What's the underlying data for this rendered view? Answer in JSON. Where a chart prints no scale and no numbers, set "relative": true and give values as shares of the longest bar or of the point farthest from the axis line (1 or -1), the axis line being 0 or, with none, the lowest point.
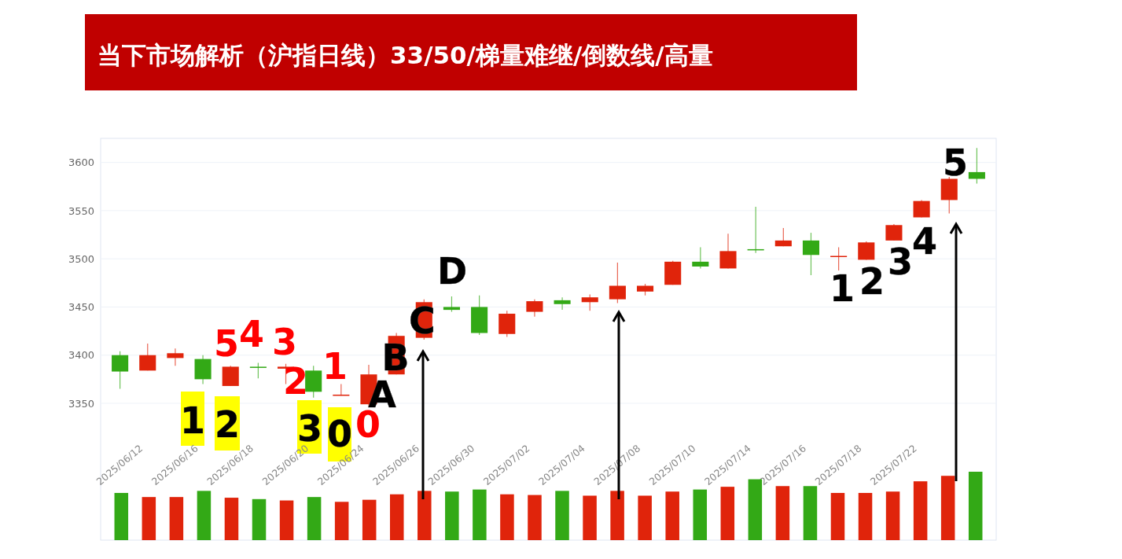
{
  "chart_data": [
    {
      "type": "candlestick",
      "title": "当下市场解析（沪指日线）33/50/梯量难继/倒数线/高量",
      "categories": [
        "2025/06/12",
        null,
        "2025/06/16",
        null,
        "2025/06/18",
        null,
        "2025/06/20",
        null,
        "2025/06/24",
        null,
        "2025/06/26",
        null,
        "2025/06/30",
        null,
        "2025/07/02",
        null,
        "2025/07/04",
        null,
        "2025/07/08",
        null,
        "2025/07/10",
        null,
        "2025/07/14",
        null,
        "2025/07/16",
        null,
        "2025/07/18",
        null,
        "2025/07/22",
        null,
        null,
        null
      ],
      "ohlc": [
        [
          3400,
          3404,
          3365,
          3383
        ],
        [
          3384,
          3412,
          3384,
          3400
        ],
        [
          3397,
          3407,
          3389,
          3402
        ],
        [
          3396,
          3400,
          3370,
          3375
        ],
        [
          3368,
          3389,
          3368,
          3388
        ],
        [
          3388,
          3392,
          3376,
          3387
        ],
        [
          3386,
          3391,
          3370,
          3388
        ],
        [
          3384,
          3389,
          3356,
          3362
        ],
        [
          3358,
          3370,
          3358,
          3359
        ],
        [
          3349,
          3390,
          3347,
          3380
        ],
        [
          3380,
          3423,
          3380,
          3420
        ],
        [
          3418,
          3458,
          3416,
          3455
        ],
        [
          3450,
          3461,
          3445,
          3447
        ],
        [
          3450,
          3462,
          3421,
          3423
        ],
        [
          3422,
          3446,
          3419,
          3443
        ],
        [
          3445,
          3458,
          3440,
          3456
        ],
        [
          3457,
          3460,
          3447,
          3453
        ],
        [
          3455,
          3463,
          3446,
          3460
        ],
        [
          3458,
          3496,
          3454,
          3472
        ],
        [
          3466,
          3474,
          3462,
          3472
        ],
        [
          3473,
          3498,
          3473,
          3497
        ],
        [
          3497,
          3512,
          3490,
          3492
        ],
        [
          3490,
          3526,
          3490,
          3508
        ],
        [
          3510,
          3554,
          3506,
          3509
        ],
        [
          3513,
          3532,
          3513,
          3519
        ],
        [
          3519,
          3527,
          3483,
          3504
        ],
        [
          3502,
          3512,
          3488,
          3503
        ],
        [
          3499,
          3518,
          3499,
          3517
        ],
        [
          3519,
          3536,
          3519,
          3535
        ],
        [
          3543,
          3561,
          3543,
          3560
        ],
        [
          3561,
          3585,
          3547,
          3583
        ],
        [
          3590,
          3615,
          3578,
          3583
        ]
      ],
      "colors": [
        "#33a916",
        "#e0240b",
        "#e0240b",
        "#33a916",
        "#e0240b",
        "#33a916",
        "#e0240b",
        "#33a916",
        "#e0240b",
        "#e0240b",
        "#e0240b",
        "#e0240b",
        "#33a916",
        "#33a916",
        "#e0240b",
        "#e0240b",
        "#33a916",
        "#e0240b",
        "#e0240b",
        "#e0240b",
        "#e0240b",
        "#33a916",
        "#e0240b",
        "#33a916",
        "#e0240b",
        "#33a916",
        "#e0240b",
        "#e0240b",
        "#e0240b",
        "#e0240b",
        "#e0240b",
        "#33a916"
      ],
      "ylim": [
        3208,
        3625
      ],
      "yticks": [
        3350,
        3400,
        3450,
        3500,
        3550,
        3600
      ],
      "grid": "y",
      "annotations": [
        "1",
        "2",
        "3",
        "0",
        "5",
        "4",
        "3",
        "2",
        "1",
        "0",
        "A",
        "B",
        "C",
        "D",
        "1",
        "2",
        "3",
        "4",
        "5"
      ]
    },
    {
      "type": "bar",
      "categories": [
        null,
        null,
        null,
        null,
        null,
        null,
        null,
        null,
        null,
        null,
        null,
        null,
        null,
        null,
        null,
        null,
        null,
        null,
        null,
        null,
        null,
        null,
        null,
        null,
        null,
        null,
        null,
        null,
        null,
        null,
        null,
        null
      ],
      "values": [
        0.69,
        0.63,
        0.63,
        0.72,
        0.62,
        0.6,
        0.58,
        0.63,
        0.56,
        0.59,
        0.67,
        0.72,
        0.71,
        0.74,
        0.67,
        0.66,
        0.72,
        0.65,
        0.72,
        0.65,
        0.71,
        0.74,
        0.78,
        0.89,
        0.79,
        0.79,
        0.69,
        0.69,
        0.71,
        0.86,
        0.94,
        1
      ],
      "colors": [
        "#33a916",
        "#e0240b",
        "#e0240b",
        "#33a916",
        "#e0240b",
        "#33a916",
        "#e0240b",
        "#33a916",
        "#e0240b",
        "#e0240b",
        "#e0240b",
        "#e0240b",
        "#33a916",
        "#33a916",
        "#e0240b",
        "#e0240b",
        "#33a916",
        "#e0240b",
        "#e0240b",
        "#e0240b",
        "#e0240b",
        "#33a916",
        "#e0240b",
        "#33a916",
        "#e0240b",
        "#33a916",
        "#e0240b",
        "#e0240b",
        "#e0240b",
        "#e0240b",
        "#e0240b",
        "#33a916"
      ],
      "relative": true
    }
  ]
}
